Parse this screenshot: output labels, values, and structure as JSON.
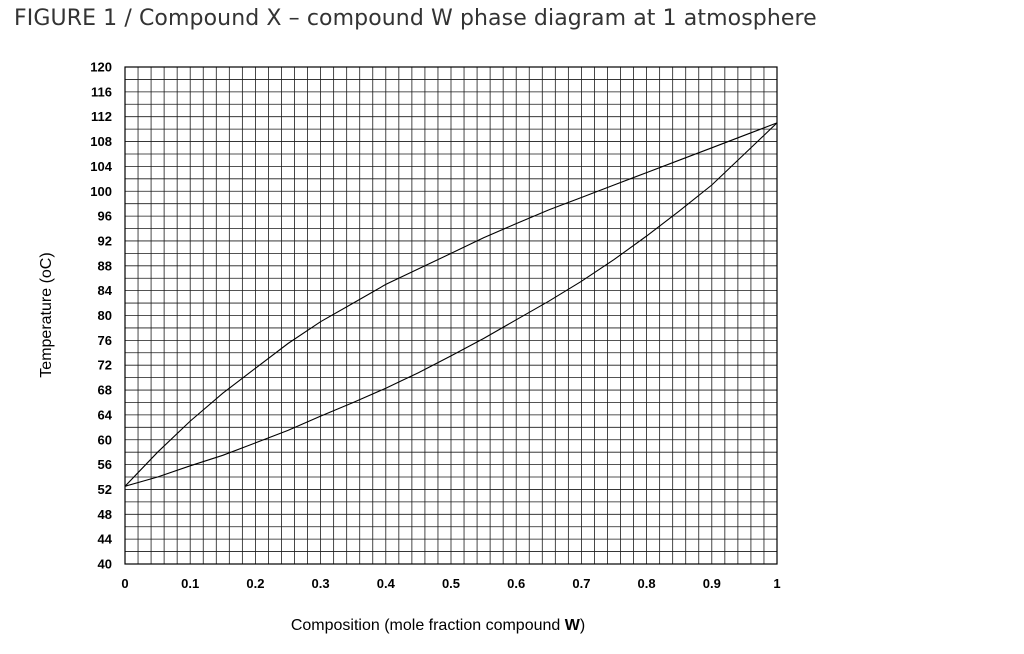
{
  "title": "FIGURE 1 / Compound X – compound W phase diagram at 1 atmosphere",
  "chart_data": {
    "type": "line",
    "xlabel_prefix": "Composition (mole fraction compound ",
    "xlabel_bold": "W",
    "xlabel_suffix": ")",
    "ylabel": "Temperature (oC)",
    "xlim": [
      0,
      1
    ],
    "ylim": [
      40,
      120
    ],
    "x_ticks": [
      "0",
      "0.1",
      "0.2",
      "0.3",
      "0.4",
      "0.5",
      "0.6",
      "0.7",
      "0.8",
      "0.9",
      "1"
    ],
    "y_ticks": [
      "40",
      "44",
      "48",
      "52",
      "56",
      "60",
      "64",
      "68",
      "72",
      "76",
      "80",
      "84",
      "88",
      "92",
      "96",
      "100",
      "104",
      "108",
      "112",
      "116",
      "120"
    ],
    "grid": true,
    "minor_grid_x_step": 0.02,
    "minor_grid_y_step": 2,
    "line_color": "#000000",
    "series": [
      {
        "x": [
          0,
          0.05,
          0.1,
          0.15,
          0.2,
          0.25,
          0.3,
          0.35,
          0.4,
          0.45,
          0.5,
          0.55,
          0.6,
          0.65,
          0.7,
          0.75,
          0.8,
          0.85,
          0.9,
          0.95,
          1
        ],
        "y": [
          52.5,
          58,
          63,
          67.5,
          71.5,
          75.5,
          79,
          82,
          85,
          87.5,
          90,
          92.5,
          94.8,
          97,
          99,
          101,
          103,
          105,
          107,
          109,
          111
        ]
      },
      {
        "x": [
          0,
          0.05,
          0.1,
          0.15,
          0.2,
          0.25,
          0.3,
          0.35,
          0.4,
          0.45,
          0.5,
          0.55,
          0.6,
          0.65,
          0.7,
          0.75,
          0.8,
          0.85,
          0.9,
          0.95,
          1
        ],
        "y": [
          52.5,
          54,
          55.8,
          57.5,
          59.5,
          61.5,
          63.8,
          66,
          68.3,
          70.8,
          73.5,
          76.3,
          79.3,
          82.3,
          85.5,
          89,
          92.8,
          96.8,
          101,
          106,
          111
        ]
      }
    ]
  }
}
